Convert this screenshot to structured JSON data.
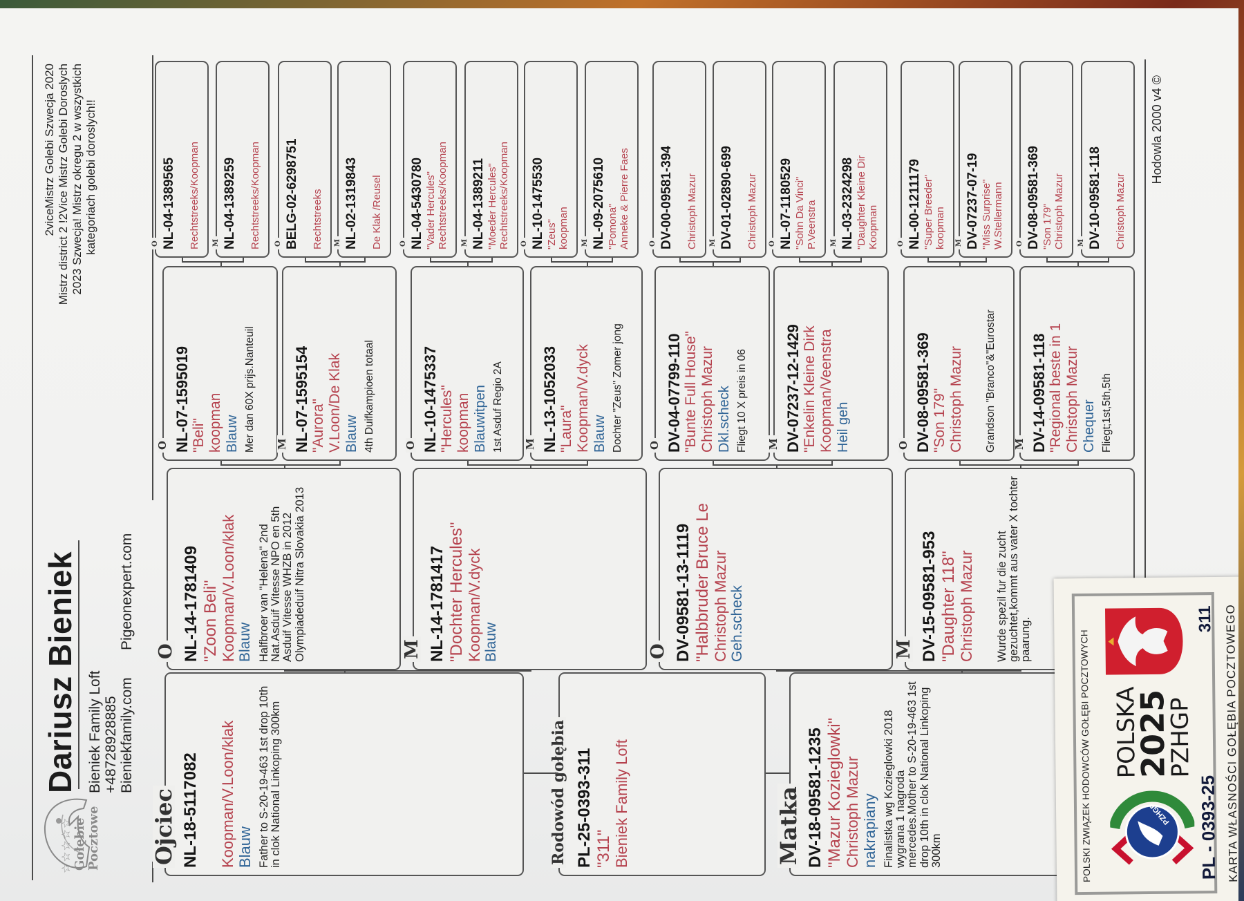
{
  "header": {
    "title": "Dariusz Bieniek",
    "loft": "Bieniek Family Loft",
    "phone": "+48728928885",
    "website1": "Bieniekfamily.com",
    "website2": "Pigeonexpert.com",
    "achievements": [
      "2viceMistrz Golebi Szwecja 2020",
      "Mistrz district 2 !2Vice Mistrz Golebi Doroslych",
      "2023 Szwecja! Mistrz okregu 2 w wszystkich",
      "kategoriach golebi doroslych!!"
    ]
  },
  "logo": {
    "stars": "☆☆☆☆☆",
    "line1": "Gołębie",
    "line2": "Pocztowe",
    "icon": "eagle-head-icon"
  },
  "colors": {
    "name": "#b5424e",
    "breeder": "#b5424e",
    "color": "#2f6496",
    "ring": "#151515"
  },
  "pedigree": {
    "subject": {
      "label": "Rodowód gołębia",
      "ring": "PL-25-0393-311",
      "name": "\"311\"",
      "breeder": "Bieniek Family Loft"
    },
    "father": {
      "label": "Ojciec",
      "ring": "NL-18-5117082",
      "breeder": "Koopman/V.Loon/klak",
      "color": "Blauw",
      "remarks": "Father to S-20-19-463 1st drop 10th in clok National Linkoping 300km"
    },
    "mother": {
      "label": "Matka",
      "ring": "DV-18-09581-1235",
      "name": "\"Mazur Kozieglowki\"",
      "breeder": "Christoph Mazur",
      "color": "nakrapiany",
      "remarks": "Finalistka wg Kozieglowki 2018 wygrana 1 nagroda mercedes.Mother to S-20-19-463 1st drop 10th in clok National Linkoping 300km"
    },
    "gen2": [
      {
        "sex": "O",
        "ring": "NL-14-1781409",
        "name": "\"Zoon Beli\"",
        "breeder": "Koopman/V.Loon/klak",
        "color": "Blauw",
        "remarks": "Halfbroer van \"Helena\" 2nd Nat.Asduif Vitesse NPO en 5th Asduif Vitesse WHZB in 2012 Olympiadeduif Nitra Slovakia 2013"
      },
      {
        "sex": "M",
        "ring": "NL-14-1781417",
        "name": "\"Dochter Hercules\"",
        "breeder": "Koopman/V.dyck",
        "color": "Blauw"
      },
      {
        "sex": "O",
        "ring": "DV-09581-13-1119",
        "name": "\"Halbbruder Bruce Le",
        "breeder": "Christoph Mazur",
        "color": "Geh.scheck"
      },
      {
        "sex": "M",
        "ring": "DV-15-09581-953",
        "name": "\"Daughter 118\"",
        "breeder": "Christoph Mazur",
        "remarks": "Wurde spezil fur die zucht gezuchtet,kommt aus vater X tochter paarung."
      }
    ],
    "gen3": [
      {
        "sex": "O",
        "ring": "NL-07-1595019",
        "name": "\"Beli\"",
        "breeder": "koopman",
        "color": "Blauw",
        "remarks": "Mer dan 60X prijs.Nanteuil"
      },
      {
        "sex": "M",
        "ring": "NL-07-1595154",
        "name": "\"Aurora\"",
        "breeder": "V.Loon/De Klak",
        "color": "Blauw",
        "remarks": "4th Duifkampioen  totaal"
      },
      {
        "sex": "O",
        "ring": "NL-10-1475337",
        "name": "\"Hercules\"",
        "breeder": "koopman",
        "color": "Blauwitpen",
        "remarks": "1st Asduf Regio 2A"
      },
      {
        "sex": "M",
        "ring": "NL-13-1052033",
        "name": "\"Laura\"",
        "breeder": "Koopman/V.dyck",
        "color": "Blauw",
        "remarks": "Dochter \"Zeus\" Zomer jong"
      },
      {
        "sex": "O",
        "ring": "DV-04-07799-110",
        "name": "\"Bunte Full House\"",
        "breeder": "Christoph Mazur",
        "color": "Dkl.scheck",
        "remarks": "Fliegt 10 X preis in 06"
      },
      {
        "sex": "M",
        "ring": "DV-07237-12-1429",
        "name": "\"Enkelin Kleine Dirk",
        "breeder": "Koopman/Veenstra",
        "color": "Heil geh"
      },
      {
        "sex": "O",
        "ring": "DV-08-09581-369",
        "name": "\"Son 179\"",
        "breeder": "Christoph Mazur",
        "remarks": "Grandson \"Branco\"&\"Eurostar"
      },
      {
        "sex": "M",
        "ring": "DV-14-09581-118",
        "name": "\"Regional beste in 1",
        "breeder": "Christoph Mazur",
        "color": "Chequer",
        "remarks": "Fliegt;1st,5th,5th"
      }
    ],
    "gen4": [
      {
        "sex": "O",
        "ring": "NL-04-1389565",
        "breeder": "Rechtstreeks/Koopman"
      },
      {
        "sex": "M",
        "ring": "NL-04-1389259",
        "breeder": "Rechtstreeks/Koopman"
      },
      {
        "sex": "O",
        "ring": "BELG-02-6298751",
        "breeder": "Rechtstreeks"
      },
      {
        "sex": "M",
        "ring": "NL-02-1319843",
        "breeder": "De Klak /Reusel"
      },
      {
        "sex": "O",
        "ring": "NL-04-5430780",
        "name": "\"Vader Hercules\"",
        "breeder": "Rechtstreeks/Koopman"
      },
      {
        "sex": "M",
        "ring": "NL-04-1389211",
        "name": "\"Moeder Hercules\"",
        "breeder": "Rechtstreeks/Koopman"
      },
      {
        "sex": "O",
        "ring": "NL-10-1475530",
        "name": "\"Zeus\"",
        "breeder": "koopman"
      },
      {
        "sex": "M",
        "ring": "NL-09-2075610",
        "name": "\"Pomona\"",
        "breeder": "Anneke & Pierre Faes"
      },
      {
        "sex": "O",
        "ring": "DV-00-09581-394",
        "breeder": "Christoph Mazur"
      },
      {
        "sex": "M",
        "ring": "DV-01-02890-699",
        "breeder": "Christoph Mazur"
      },
      {
        "sex": "O",
        "ring": "NL-07-1180529",
        "name": "\"Sohn Da Vinci\"",
        "breeder": "P.Veenstra"
      },
      {
        "sex": "M",
        "ring": "NL-03-2324298",
        "name": "\"Daughter Kleine Dir",
        "breeder": "Koopman"
      },
      {
        "sex": "O",
        "ring": "NL-00-1211179",
        "name": "\"Super Breeder\"",
        "breeder": "koopman"
      },
      {
        "sex": "M",
        "ring": "DV-07237-07-19",
        "name": "\"Miss Surprise\"",
        "breeder": "W.Stellermann"
      },
      {
        "sex": "O",
        "ring": "DV-08-09581-369",
        "name": "\"Son 179\"",
        "breeder": "Christoph Mazur"
      },
      {
        "sex": "M",
        "ring": "DV-10-09581-118",
        "breeder": "Christoph Mazur"
      }
    ]
  },
  "footer": {
    "text": "Hodowla 2000 v4 ©"
  },
  "card": {
    "org": "POLSKI ZWIĄZEK HODOWCÓW GOŁĘBI POCZTOWYCH",
    "logo_text": "PZHGP",
    "polska": "POLSKA",
    "year": "2025",
    "pzhgp": "PZHGP",
    "ring": "PL - 0393-25",
    "number": "311",
    "caption": "KARTA WŁASNOŚCI GOŁĘBIA POCZTOWEGO",
    "colors": {
      "shield": "#d01f2e",
      "logo_blue": "#1d3f8f",
      "wreath": "#2f8a3a"
    }
  }
}
